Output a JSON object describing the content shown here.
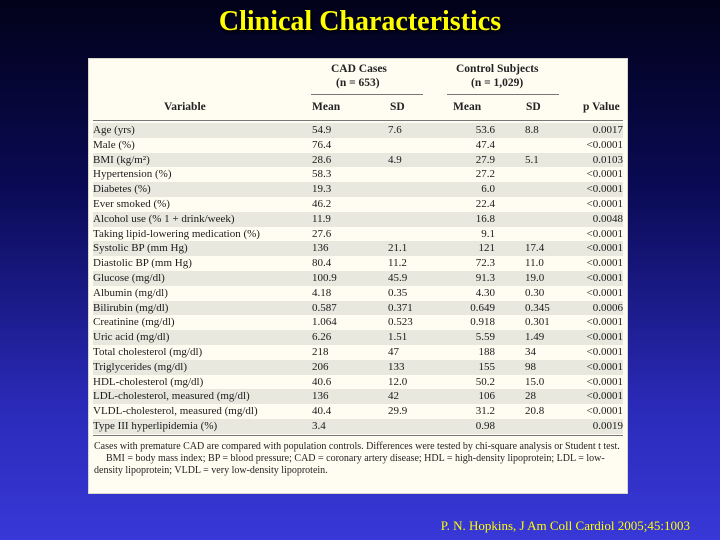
{
  "title": "Clinical Characteristics",
  "table": {
    "headers": {
      "variable": "Variable",
      "group1": "CAD Cases",
      "group1_n": "(n = 653)",
      "group2": "Control Subjects",
      "group2_n": "(n = 1,029)",
      "mean": "Mean",
      "sd": "SD",
      "p": "p Value"
    },
    "rows": [
      {
        "variable": "Age (yrs)",
        "cad_mean": "54.9",
        "cad_sd": "7.6",
        "ctrl_mean": "53.6",
        "ctrl_sd": "8.8",
        "p": "0.0017"
      },
      {
        "variable": "Male (%)",
        "cad_mean": "76.4",
        "cad_sd": "",
        "ctrl_mean": "47.4",
        "ctrl_sd": "",
        "p": "<0.0001"
      },
      {
        "variable": "BMI (kg/m²)",
        "cad_mean": "28.6",
        "cad_sd": "4.9",
        "ctrl_mean": "27.9",
        "ctrl_sd": "5.1",
        "p": "0.0103"
      },
      {
        "variable": "Hypertension (%)",
        "cad_mean": "58.3",
        "cad_sd": "",
        "ctrl_mean": "27.2",
        "ctrl_sd": "",
        "p": "<0.0001"
      },
      {
        "variable": "Diabetes (%)",
        "cad_mean": "19.3",
        "cad_sd": "",
        "ctrl_mean": "6.0",
        "ctrl_sd": "",
        "p": "<0.0001"
      },
      {
        "variable": "Ever smoked (%)",
        "cad_mean": "46.2",
        "cad_sd": "",
        "ctrl_mean": "22.4",
        "ctrl_sd": "",
        "p": "<0.0001"
      },
      {
        "variable": "Alcohol use (% 1 + drink/week)",
        "cad_mean": "11.9",
        "cad_sd": "",
        "ctrl_mean": "16.8",
        "ctrl_sd": "",
        "p": "0.0048"
      },
      {
        "variable": "Taking lipid-lowering medication (%)",
        "cad_mean": "27.6",
        "cad_sd": "",
        "ctrl_mean": "9.1",
        "ctrl_sd": "",
        "p": "<0.0001"
      },
      {
        "variable": "Systolic BP (mm Hg)",
        "cad_mean": "136",
        "cad_sd": "21.1",
        "ctrl_mean": "121",
        "ctrl_sd": "17.4",
        "p": "<0.0001"
      },
      {
        "variable": "Diastolic BP (mm Hg)",
        "cad_mean": "80.4",
        "cad_sd": "11.2",
        "ctrl_mean": "72.3",
        "ctrl_sd": "11.0",
        "p": "<0.0001"
      },
      {
        "variable": "Glucose (mg/dl)",
        "cad_mean": "100.9",
        "cad_sd": "45.9",
        "ctrl_mean": "91.3",
        "ctrl_sd": "19.0",
        "p": "<0.0001"
      },
      {
        "variable": "Albumin (mg/dl)",
        "cad_mean": "4.18",
        "cad_sd": "0.35",
        "ctrl_mean": "4.30",
        "ctrl_sd": "0.30",
        "p": "<0.0001"
      },
      {
        "variable": "Bilirubin (mg/dl)",
        "cad_mean": "0.587",
        "cad_sd": "0.371",
        "ctrl_mean": "0.649",
        "ctrl_sd": "0.345",
        "p": "0.0006"
      },
      {
        "variable": "Creatinine (mg/dl)",
        "cad_mean": "1.064",
        "cad_sd": "0.523",
        "ctrl_mean": "0.918",
        "ctrl_sd": "0.301",
        "p": "<0.0001"
      },
      {
        "variable": "Uric acid (mg/dl)",
        "cad_mean": "6.26",
        "cad_sd": "1.51",
        "ctrl_mean": "5.59",
        "ctrl_sd": "1.49",
        "p": "<0.0001"
      },
      {
        "variable": "Total cholesterol (mg/dl)",
        "cad_mean": "218",
        "cad_sd": "47",
        "ctrl_mean": "188",
        "ctrl_sd": "34",
        "p": "<0.0001"
      },
      {
        "variable": "Triglycerides (mg/dl)",
        "cad_mean": "206",
        "cad_sd": "133",
        "ctrl_mean": "155",
        "ctrl_sd": "98",
        "p": "<0.0001"
      },
      {
        "variable": "HDL-cholesterol (mg/dl)",
        "cad_mean": "40.6",
        "cad_sd": "12.0",
        "ctrl_mean": "50.2",
        "ctrl_sd": "15.0",
        "p": "<0.0001"
      },
      {
        "variable": "LDL-cholesterol, measured (mg/dl)",
        "cad_mean": "136",
        "cad_sd": "42",
        "ctrl_mean": "106",
        "ctrl_sd": "28",
        "p": "<0.0001"
      },
      {
        "variable": "VLDL-cholesterol, measured (mg/dl)",
        "cad_mean": "40.4",
        "cad_sd": "29.9",
        "ctrl_mean": "31.2",
        "ctrl_sd": "20.8",
        "p": "<0.0001"
      },
      {
        "variable": "Type III hyperlipidemia (%)",
        "cad_mean": "3.4",
        "cad_sd": "",
        "ctrl_mean": "0.98",
        "ctrl_sd": "",
        "p": "0.0019"
      }
    ],
    "footnote1": "Cases with premature CAD are compared with population controls. Differences were tested by chi-square analysis or Student t test.",
    "footnote2": "BMI = body mass index; BP = blood pressure; CAD = coronary artery disease; HDL = high-density lipoprotein; LDL = low-density lipoprotein; VLDL = very low-density lipoprotein."
  },
  "citation": "P. N. Hopkins, J Am Coll Cardiol 2005;45:1003",
  "colors": {
    "title": "#ffff00",
    "background_top": "#02021a",
    "background_bottom": "#3838d8",
    "panel": "#fffdf2",
    "shaded_row": "#e8e8de"
  }
}
